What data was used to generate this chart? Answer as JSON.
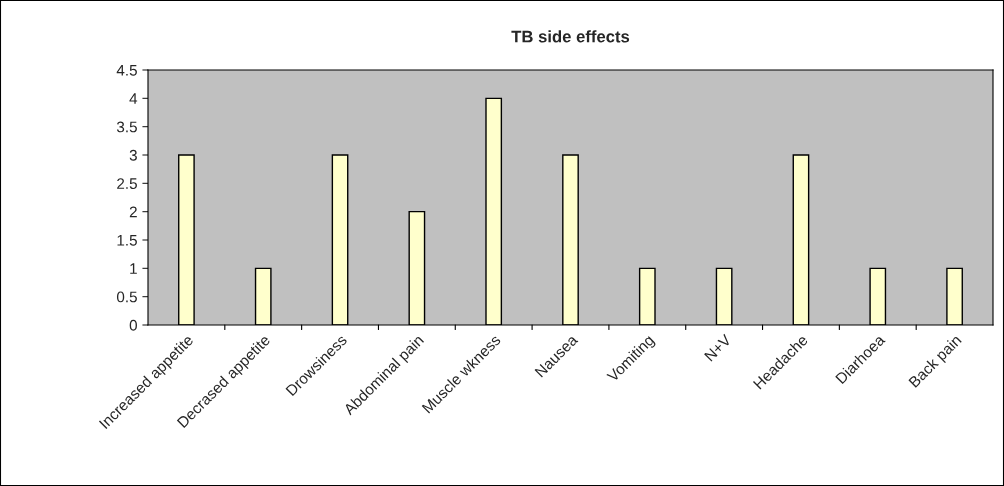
{
  "chart_data": {
    "type": "bar",
    "title": "TB side effects",
    "categories": [
      "Increased appetite",
      "Decrased appetite",
      "Drowsiness",
      "Abdominal pain",
      "Muscle wkness",
      "Nausea",
      "Vomiting",
      "N+V",
      "Headache",
      "Diarhoea",
      "Back pain"
    ],
    "values": [
      3,
      1,
      3,
      2,
      4,
      3,
      1,
      1,
      3,
      1,
      1
    ],
    "color": "#ffffcc",
    "ylim": [
      0,
      4.5
    ],
    "yticks": [
      0,
      0.5,
      1,
      1.5,
      2,
      2.5,
      3,
      3.5,
      4,
      4.5
    ],
    "grid": false,
    "legend": false
  }
}
